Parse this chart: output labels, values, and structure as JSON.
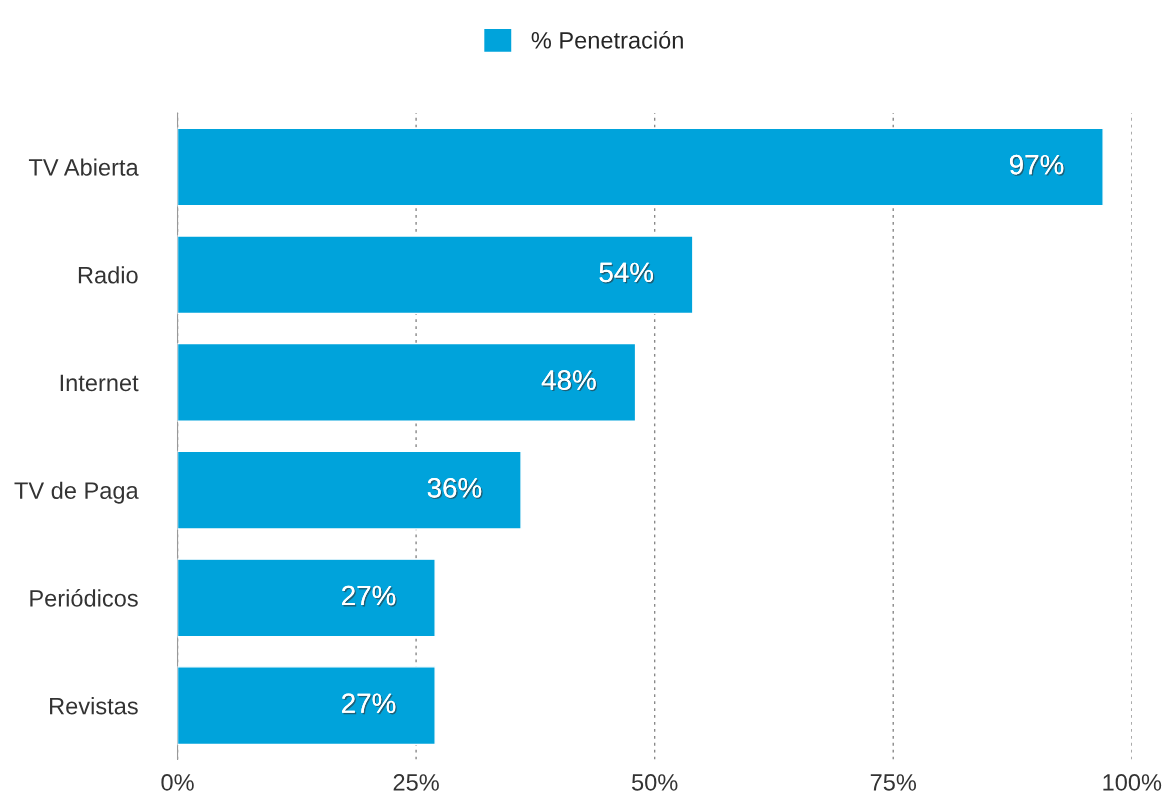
{
  "chart_data": {
    "type": "bar",
    "orientation": "horizontal",
    "categories": [
      "TV Abierta",
      "Radio",
      "Internet",
      "TV de Paga",
      "Periódicos",
      "Revistas"
    ],
    "series": [
      {
        "name": "% Penetración",
        "color": "#00a3db",
        "values": [
          97,
          54,
          48,
          36,
          27,
          27
        ]
      }
    ],
    "value_labels": [
      "97%",
      "54%",
      "48%",
      "36%",
      "27%",
      "27%"
    ],
    "xlim": [
      0,
      100
    ],
    "xticks": [
      {
        "value": 0,
        "label": "0%"
      },
      {
        "value": 25,
        "label": "25%"
      },
      {
        "value": 50,
        "label": "50%"
      },
      {
        "value": 75,
        "label": "75%"
      },
      {
        "value": 100,
        "label": "100%"
      }
    ],
    "grid": "x",
    "legend": "top"
  }
}
